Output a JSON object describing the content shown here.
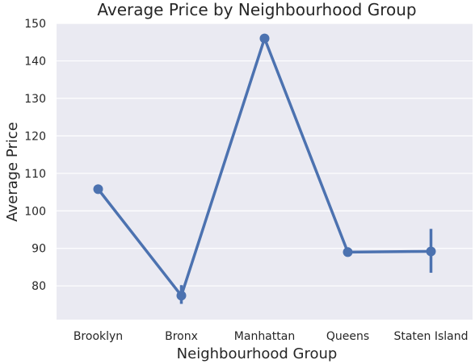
{
  "chart_data": {
    "type": "line",
    "title": "Average Price by Neighbourhood Group",
    "xlabel": "Neighbourhood Group",
    "ylabel": "Average Price",
    "categories": [
      "Brooklyn",
      "Bronx",
      "Manhattan",
      "Queens",
      "Staten Island"
    ],
    "values": [
      105.8,
      77.4,
      146.0,
      89.0,
      89.2
    ],
    "error_bars": [
      [
        105.2,
        106.4
      ],
      [
        75.2,
        80.2
      ],
      [
        145.2,
        146.9
      ],
      [
        87.9,
        90.3
      ],
      [
        83.5,
        95.2
      ]
    ],
    "ylim": [
      71,
      150
    ],
    "yticks": [
      80,
      90,
      100,
      110,
      120,
      130,
      140,
      150
    ],
    "grid": true,
    "colors": {
      "line": "#4c72b0",
      "background": "#eaeaf2",
      "grid": "#ffffff"
    }
  }
}
